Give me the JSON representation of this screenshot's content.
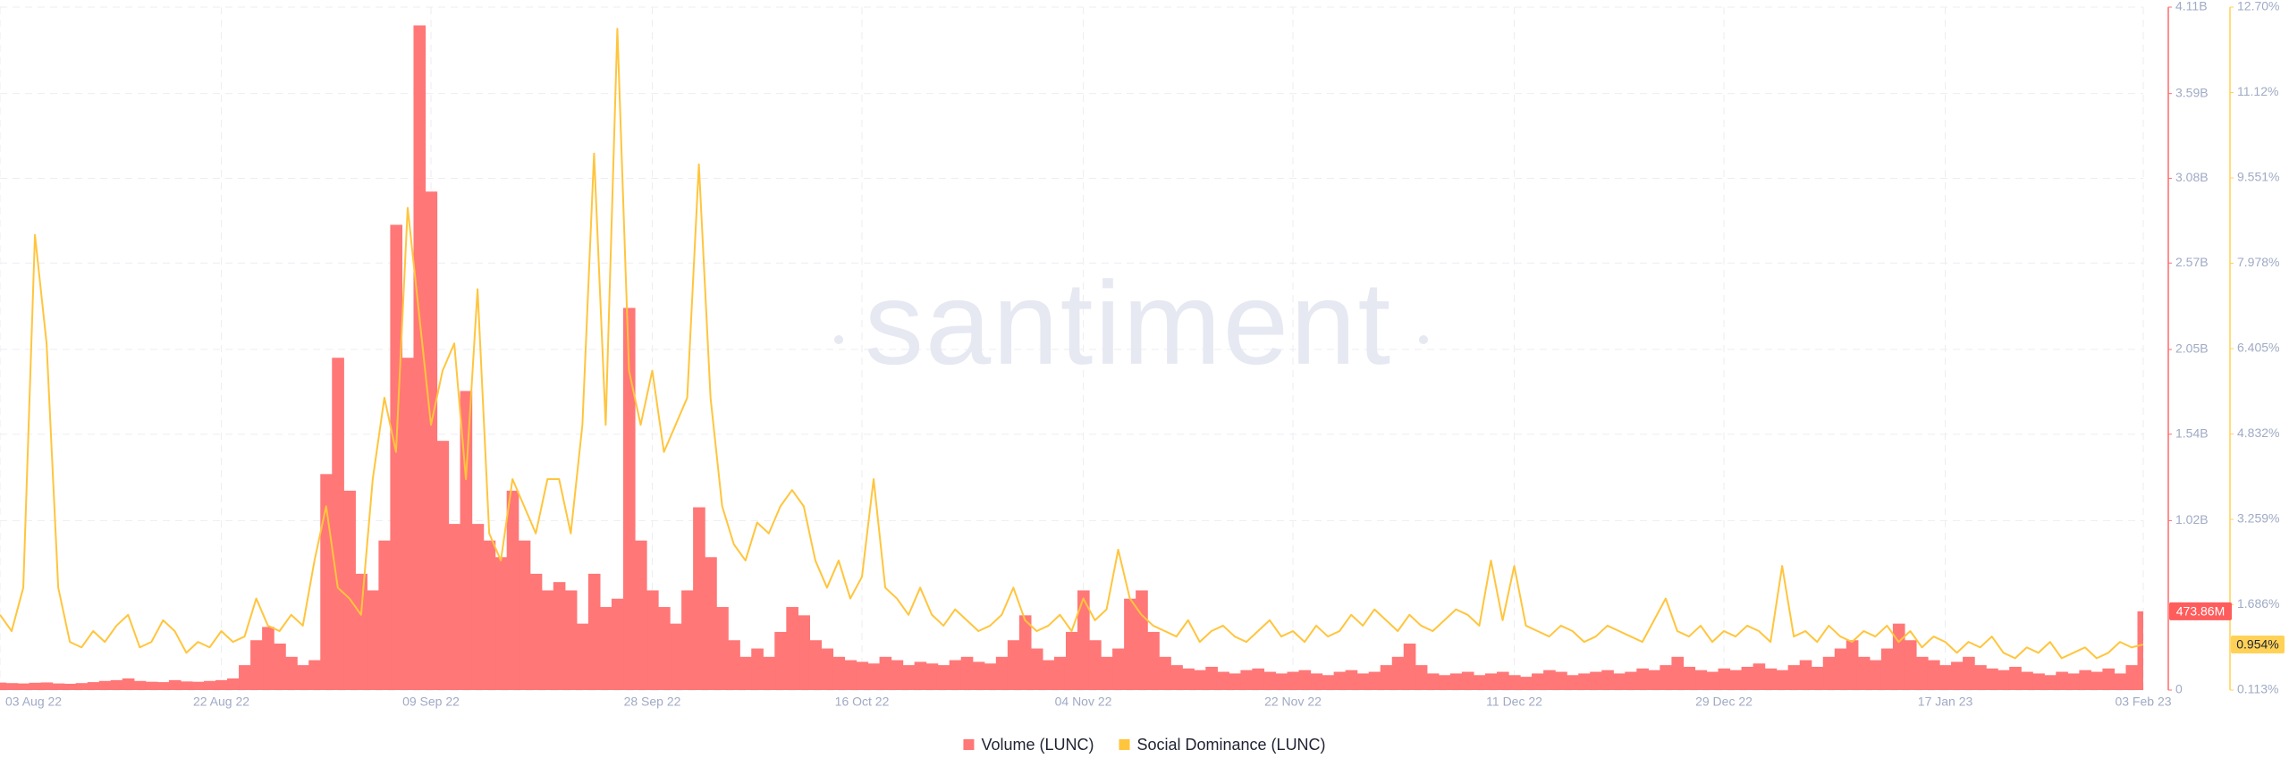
{
  "chart_data": {
    "type": "combo",
    "watermark": "santiment",
    "x": [
      "2022-08-03",
      "2022-08-04",
      "2022-08-05",
      "2022-08-06",
      "2022-08-07",
      "2022-08-08",
      "2022-08-09",
      "2022-08-10",
      "2022-08-11",
      "2022-08-12",
      "2022-08-13",
      "2022-08-14",
      "2022-08-15",
      "2022-08-16",
      "2022-08-17",
      "2022-08-18",
      "2022-08-19",
      "2022-08-20",
      "2022-08-21",
      "2022-08-22",
      "2022-08-23",
      "2022-08-24",
      "2022-08-25",
      "2022-08-26",
      "2022-08-27",
      "2022-08-28",
      "2022-08-29",
      "2022-08-30",
      "2022-08-31",
      "2022-09-01",
      "2022-09-02",
      "2022-09-03",
      "2022-09-04",
      "2022-09-05",
      "2022-09-06",
      "2022-09-07",
      "2022-09-08",
      "2022-09-09",
      "2022-09-10",
      "2022-09-11",
      "2022-09-12",
      "2022-09-13",
      "2022-09-14",
      "2022-09-15",
      "2022-09-16",
      "2022-09-17",
      "2022-09-18",
      "2022-09-19",
      "2022-09-20",
      "2022-09-21",
      "2022-09-22",
      "2022-09-23",
      "2022-09-24",
      "2022-09-25",
      "2022-09-26",
      "2022-09-27",
      "2022-09-28",
      "2022-09-29",
      "2022-09-30",
      "2022-10-01",
      "2022-10-02",
      "2022-10-03",
      "2022-10-04",
      "2022-10-05",
      "2022-10-06",
      "2022-10-07",
      "2022-10-08",
      "2022-10-09",
      "2022-10-10",
      "2022-10-11",
      "2022-10-12",
      "2022-10-13",
      "2022-10-14",
      "2022-10-15",
      "2022-10-16",
      "2022-10-17",
      "2022-10-18",
      "2022-10-19",
      "2022-10-20",
      "2022-10-21",
      "2022-10-22",
      "2022-10-23",
      "2022-10-24",
      "2022-10-25",
      "2022-10-26",
      "2022-10-27",
      "2022-10-28",
      "2022-10-29",
      "2022-10-30",
      "2022-10-31",
      "2022-11-01",
      "2022-11-02",
      "2022-11-03",
      "2022-11-04",
      "2022-11-05",
      "2022-11-06",
      "2022-11-07",
      "2022-11-08",
      "2022-11-09",
      "2022-11-10",
      "2022-11-11",
      "2022-11-12",
      "2022-11-13",
      "2022-11-14",
      "2022-11-15",
      "2022-11-16",
      "2022-11-17",
      "2022-11-18",
      "2022-11-19",
      "2022-11-20",
      "2022-11-21",
      "2022-11-22",
      "2022-11-23",
      "2022-11-24",
      "2022-11-25",
      "2022-11-26",
      "2022-11-27",
      "2022-11-28",
      "2022-11-29",
      "2022-11-30",
      "2022-12-01",
      "2022-12-02",
      "2022-12-03",
      "2022-12-04",
      "2022-12-05",
      "2022-12-06",
      "2022-12-07",
      "2022-12-08",
      "2022-12-09",
      "2022-12-10",
      "2022-12-11",
      "2022-12-12",
      "2022-12-13",
      "2022-12-14",
      "2022-12-15",
      "2022-12-16",
      "2022-12-17",
      "2022-12-18",
      "2022-12-19",
      "2022-12-20",
      "2022-12-21",
      "2022-12-22",
      "2022-12-23",
      "2022-12-24",
      "2022-12-25",
      "2022-12-26",
      "2022-12-27",
      "2022-12-28",
      "2022-12-29",
      "2022-12-30",
      "2022-12-31",
      "2023-01-01",
      "2023-01-02",
      "2023-01-03",
      "2023-01-04",
      "2023-01-05",
      "2023-01-06",
      "2023-01-07",
      "2023-01-08",
      "2023-01-09",
      "2023-01-10",
      "2023-01-11",
      "2023-01-12",
      "2023-01-13",
      "2023-01-14",
      "2023-01-15",
      "2023-01-16",
      "2023-01-17",
      "2023-01-18",
      "2023-01-19",
      "2023-01-20",
      "2023-01-21",
      "2023-01-22",
      "2023-01-23",
      "2023-01-24",
      "2023-01-25",
      "2023-01-26",
      "2023-01-27",
      "2023-01-28",
      "2023-01-29",
      "2023-01-30",
      "2023-01-31",
      "2023-02-01",
      "2023-02-02",
      "2023-02-03"
    ],
    "xlim": [
      "2022-08-03",
      "2023-02-03"
    ],
    "xticks": [
      {
        "value": "2022-08-03",
        "label": "03 Aug 22"
      },
      {
        "value": "2022-08-22",
        "label": "22 Aug 22"
      },
      {
        "value": "2022-09-09",
        "label": "09 Sep 22"
      },
      {
        "value": "2022-09-28",
        "label": "28 Sep 22"
      },
      {
        "value": "2022-10-16",
        "label": "16 Oct 22"
      },
      {
        "value": "2022-11-04",
        "label": "04 Nov 22"
      },
      {
        "value": "2022-11-22",
        "label": "22 Nov 22"
      },
      {
        "value": "2022-12-11",
        "label": "11 Dec 22"
      },
      {
        "value": "2022-12-29",
        "label": "29 Dec 22"
      },
      {
        "value": "2023-01-17",
        "label": "17 Jan 23"
      },
      {
        "value": "2023-02-03",
        "label": "03 Feb 23"
      }
    ],
    "ylim": [
      0,
      4110000000
    ],
    "yticks": [
      0,
      {
        "value": 1020000000,
        "label": "1.02B"
      },
      {
        "value": 1540000000,
        "label": "1.54B"
      },
      {
        "value": 2050000000,
        "label": "2.05B"
      },
      {
        "value": 2570000000,
        "label": "2.57B"
      },
      {
        "value": 3080000000,
        "label": "3.08B"
      },
      {
        "value": 3590000000,
        "label": "3.59B"
      },
      {
        "value": 4110000000,
        "label": "4.11B"
      }
    ],
    "y2lim": [
      0.113,
      12.697
    ],
    "y2ticks": [
      {
        "value": 0.113,
        "label": "0.113%"
      },
      {
        "value": 1.686,
        "label": "1.686%"
      },
      {
        "value": 3.259,
        "label": "3.259%"
      },
      {
        "value": 4.832,
        "label": "4.832%"
      },
      {
        "value": 6.405,
        "label": "6.405%"
      },
      {
        "value": 7.978,
        "label": "7.978%"
      },
      {
        "value": 9.551,
        "label": "9.551%"
      },
      {
        "value": 11.124,
        "label": "11.12%"
      },
      {
        "value": 12.697,
        "label": "12.70%"
      }
    ],
    "grid": true,
    "legend": "bottom",
    "series": [
      {
        "name": "Volume (LUNC)",
        "type": "bar",
        "color": "#ff7777",
        "axis_color": "#ff6b6b",
        "value_badge": {
          "value": 473860000,
          "label": "473.86M"
        },
        "values": [
          45000000,
          42000000,
          40000000,
          44000000,
          46000000,
          40000000,
          38000000,
          42000000,
          48000000,
          55000000,
          60000000,
          70000000,
          55000000,
          50000000,
          48000000,
          60000000,
          52000000,
          50000000,
          55000000,
          60000000,
          70000000,
          150000000,
          300000000,
          380000000,
          280000000,
          200000000,
          150000000,
          180000000,
          1300000000,
          2000000000,
          1200000000,
          700000000,
          600000000,
          900000000,
          2800000000,
          2000000000,
          4000000000,
          3000000000,
          1500000000,
          1000000000,
          1800000000,
          1000000000,
          900000000,
          800000000,
          1200000000,
          900000000,
          700000000,
          600000000,
          650000000,
          600000000,
          400000000,
          700000000,
          500000000,
          550000000,
          2300000000,
          900000000,
          600000000,
          500000000,
          400000000,
          600000000,
          1100000000,
          800000000,
          500000000,
          300000000,
          200000000,
          250000000,
          200000000,
          350000000,
          500000000,
          450000000,
          300000000,
          250000000,
          200000000,
          180000000,
          170000000,
          160000000,
          200000000,
          180000000,
          150000000,
          170000000,
          160000000,
          150000000,
          180000000,
          200000000,
          170000000,
          160000000,
          200000000,
          300000000,
          450000000,
          250000000,
          180000000,
          200000000,
          350000000,
          600000000,
          300000000,
          200000000,
          250000000,
          550000000,
          600000000,
          350000000,
          200000000,
          150000000,
          130000000,
          120000000,
          140000000,
          110000000,
          100000000,
          120000000,
          130000000,
          110000000,
          100000000,
          110000000,
          120000000,
          100000000,
          90000000,
          110000000,
          120000000,
          100000000,
          110000000,
          150000000,
          200000000,
          280000000,
          150000000,
          100000000,
          90000000,
          100000000,
          110000000,
          90000000,
          100000000,
          110000000,
          90000000,
          80000000,
          100000000,
          120000000,
          110000000,
          90000000,
          100000000,
          110000000,
          120000000,
          100000000,
          110000000,
          130000000,
          120000000,
          150000000,
          200000000,
          140000000,
          120000000,
          110000000,
          130000000,
          120000000,
          140000000,
          160000000,
          130000000,
          120000000,
          150000000,
          180000000,
          140000000,
          200000000,
          250000000,
          300000000,
          200000000,
          180000000,
          250000000,
          400000000,
          300000000,
          200000000,
          180000000,
          150000000,
          170000000,
          200000000,
          150000000,
          130000000,
          120000000,
          140000000,
          110000000,
          100000000,
          90000000,
          110000000,
          100000000,
          120000000,
          110000000,
          130000000,
          100000000,
          150000000,
          473860000
        ]
      },
      {
        "name": "Social Dominance (LUNC)",
        "type": "line",
        "color": "#ffc53d",
        "axis": "y2",
        "axis_color": "#ffd257",
        "value_badge": {
          "value": 0.954,
          "label": "0.954%"
        },
        "values": [
          1.5,
          1.2,
          2.0,
          8.5,
          6.5,
          2.0,
          1.0,
          0.9,
          1.2,
          1.0,
          1.3,
          1.5,
          0.9,
          1.0,
          1.4,
          1.2,
          0.8,
          1.0,
          0.9,
          1.2,
          1.0,
          1.1,
          1.8,
          1.3,
          1.2,
          1.5,
          1.3,
          2.5,
          3.5,
          2.0,
          1.8,
          1.5,
          4.0,
          5.5,
          4.5,
          9.0,
          7.0,
          5.0,
          6.0,
          6.5,
          4.0,
          7.5,
          3.0,
          2.5,
          4.0,
          3.5,
          3.0,
          4.0,
          4.0,
          3.0,
          5.0,
          10.0,
          5.0,
          12.3,
          6.0,
          5.0,
          6.0,
          4.5,
          5.0,
          5.5,
          9.8,
          5.5,
          3.5,
          2.8,
          2.5,
          3.2,
          3.0,
          3.5,
          3.8,
          3.5,
          2.5,
          2.0,
          2.5,
          1.8,
          2.2,
          4.0,
          2.0,
          1.8,
          1.5,
          2.0,
          1.5,
          1.3,
          1.6,
          1.4,
          1.2,
          1.3,
          1.5,
          2.0,
          1.4,
          1.2,
          1.3,
          1.5,
          1.2,
          1.8,
          1.4,
          1.6,
          2.7,
          1.8,
          1.5,
          1.3,
          1.2,
          1.1,
          1.4,
          1.0,
          1.2,
          1.3,
          1.1,
          1.0,
          1.2,
          1.4,
          1.1,
          1.2,
          1.0,
          1.3,
          1.1,
          1.2,
          1.5,
          1.3,
          1.6,
          1.4,
          1.2,
          1.5,
          1.3,
          1.2,
          1.4,
          1.6,
          1.5,
          1.3,
          2.5,
          1.4,
          2.4,
          1.3,
          1.2,
          1.1,
          1.3,
          1.2,
          1.0,
          1.1,
          1.3,
          1.2,
          1.1,
          1.0,
          1.4,
          1.8,
          1.2,
          1.1,
          1.3,
          1.0,
          1.2,
          1.1,
          1.3,
          1.2,
          1.0,
          2.4,
          1.1,
          1.2,
          1.0,
          1.3,
          1.1,
          1.0,
          1.2,
          1.1,
          1.3,
          1.0,
          1.2,
          0.9,
          1.1,
          1.0,
          0.8,
          1.0,
          0.9,
          1.1,
          0.8,
          0.7,
          0.9,
          0.8,
          1.0,
          0.7,
          0.8,
          0.9,
          0.7,
          0.8,
          1.0,
          0.9,
          0.954
        ]
      }
    ]
  }
}
